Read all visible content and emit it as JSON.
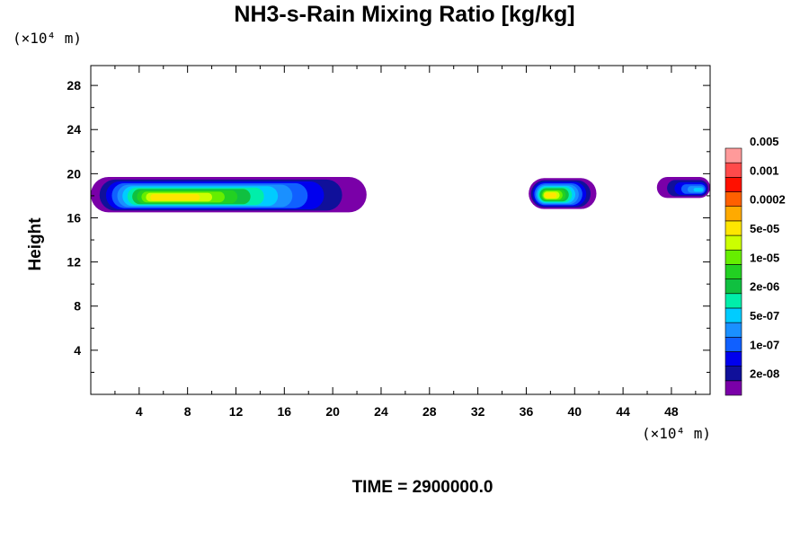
{
  "chart_data": {
    "type": "heatmap",
    "title": "NH3-s-Rain Mixing Ratio [kg/kg]",
    "ylabel": "Height",
    "xlabel": "",
    "x_unit": "(×10⁴ m)",
    "y_unit": "(×10⁴ m)",
    "footer": "TIME = 2900000.0",
    "xlim": [
      0,
      51.2
    ],
    "ylim": [
      0,
      29.8
    ],
    "x_ticks": [
      4,
      8,
      12,
      16,
      20,
      24,
      28,
      32,
      36,
      40,
      44,
      48
    ],
    "y_ticks": [
      4,
      8,
      12,
      16,
      20,
      24,
      28
    ],
    "colorbar": {
      "colors": [
        "#7a00a8",
        "#10109a",
        "#0000ee",
        "#1060ff",
        "#1a90ff",
        "#00ccff",
        "#00eeaa",
        "#10c040",
        "#22d022",
        "#66ee00",
        "#ccff00",
        "#ffe600",
        "#ffaa00",
        "#ff6000",
        "#ff1000",
        "#ff4a4a",
        "#ff9a9a"
      ],
      "labels": [
        "2e-08",
        "1e-07",
        "5e-07",
        "2e-06",
        "1e-05",
        "5e-05",
        "0.0002",
        "0.001",
        "0.005"
      ]
    },
    "clouds": [
      {
        "x_range": [
          0,
          22.8
        ],
        "height_range": [
          16.5,
          19.7
        ],
        "peak": "5e-05",
        "peak_x": 6,
        "peak_height": 17.8
      },
      {
        "x_range": [
          36.2,
          41.8
        ],
        "height_range": [
          16.8,
          19.6
        ],
        "peak": "5e-05",
        "peak_x": 37.8,
        "peak_height": 18
      },
      {
        "x_range": [
          46.8,
          51.2
        ],
        "height_range": [
          17.8,
          19.7
        ],
        "peak": "5e-07",
        "peak_x": 50.5,
        "peak_height": 18.5
      }
    ]
  }
}
